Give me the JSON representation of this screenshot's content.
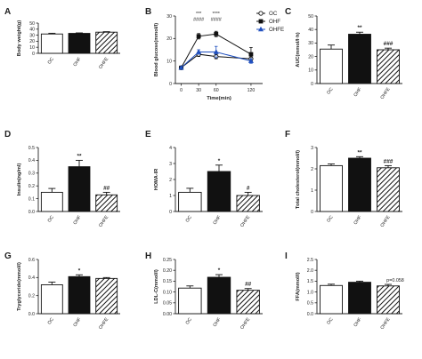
{
  "colors": {
    "OC": "#ffffff",
    "OHF": "#111111",
    "OHFE": "hatch",
    "axis": "#222222",
    "line_OHFE": "#1f4fbf"
  },
  "chart_data": [
    {
      "panel": "A",
      "type": "bar",
      "ylabel": "Body weight(g)",
      "categories": [
        "OC",
        "OHF",
        "OHFE"
      ],
      "values": [
        32,
        33,
        35
      ],
      "errors": [
        1.2,
        0.8,
        0.8
      ],
      "ylim": [
        0,
        50
      ],
      "yticks": [
        0,
        10,
        20,
        30,
        40,
        50
      ],
      "annotations": [
        "",
        "",
        ""
      ]
    },
    {
      "panel": "B",
      "type": "line",
      "ylabel": "Blood glucose(mmol/l)",
      "xlabel": "Time(min)",
      "x": [
        0,
        30,
        60,
        120
      ],
      "ylim": [
        0,
        30
      ],
      "yticks": [
        0,
        10,
        20,
        30
      ],
      "xticks": [
        0,
        30,
        60,
        120
      ],
      "series": [
        {
          "name": "OC",
          "values": [
            7,
            13,
            12,
            11
          ],
          "errors": [
            0.5,
            1.0,
            1.0,
            0.8
          ],
          "marker": "open-circle"
        },
        {
          "name": "OHF",
          "values": [
            7,
            21,
            22,
            13
          ],
          "errors": [
            0.5,
            1.2,
            1.2,
            3.0
          ],
          "marker": "filled-square"
        },
        {
          "name": "OHFE",
          "values": [
            7,
            14,
            14,
            10
          ],
          "errors": [
            0.5,
            1.0,
            2.5,
            1.0
          ],
          "marker": "filled-triangle"
        }
      ],
      "annotations": [
        {
          "x": 30,
          "top": "***",
          "bottom": "####"
        },
        {
          "x": 60,
          "top": "****",
          "bottom": "####"
        }
      ],
      "legend_position": "top-right"
    },
    {
      "panel": "C",
      "type": "bar",
      "ylabel": "AUC(mmol/l·h)",
      "categories": [
        "OC",
        "OHF",
        "OHFE"
      ],
      "values": [
        25.5,
        36.5,
        25
      ],
      "errors": [
        3,
        1.5,
        1.2
      ],
      "ylim": [
        0,
        50
      ],
      "yticks": [
        0,
        10,
        20,
        30,
        40,
        50
      ],
      "annotations": [
        "",
        "**",
        "###"
      ]
    },
    {
      "panel": "D",
      "type": "bar",
      "ylabel": "Insulin(ng/ml)",
      "categories": [
        "OC",
        "OHF",
        "OHFE"
      ],
      "values": [
        0.15,
        0.35,
        0.13
      ],
      "errors": [
        0.03,
        0.05,
        0.02
      ],
      "ylim": [
        0,
        0.5
      ],
      "yticks": [
        0.0,
        0.1,
        0.2,
        0.3,
        0.4,
        0.5
      ],
      "annotations": [
        "",
        "**",
        "##"
      ]
    },
    {
      "panel": "E",
      "type": "bar",
      "ylabel": "HOMA-IR",
      "categories": [
        "OC",
        "OHF",
        "OHFE"
      ],
      "values": [
        1.2,
        2.5,
        1.0
      ],
      "errors": [
        0.25,
        0.4,
        0.2
      ],
      "ylim": [
        0,
        4
      ],
      "yticks": [
        0,
        1,
        2,
        3,
        4
      ],
      "annotations": [
        "",
        "*",
        "#"
      ]
    },
    {
      "panel": "F",
      "type": "bar",
      "ylabel": "Total cholesterol(mmol/l)",
      "categories": [
        "OC",
        "OHF",
        "OHFE"
      ],
      "values": [
        2.15,
        2.5,
        2.05
      ],
      "errors": [
        0.08,
        0.07,
        0.1
      ],
      "ylim": [
        0,
        3
      ],
      "yticks": [
        0,
        1,
        2,
        3
      ],
      "annotations": [
        "",
        "**",
        "###"
      ]
    },
    {
      "panel": "G",
      "type": "bar",
      "ylabel": "Tryglyceride(mmol/l)",
      "categories": [
        "OC",
        "OHF",
        "OHFE"
      ],
      "values": [
        0.32,
        0.41,
        0.39
      ],
      "errors": [
        0.03,
        0.02,
        0.01
      ],
      "ylim": [
        0,
        0.6
      ],
      "yticks": [
        0.0,
        0.2,
        0.4,
        0.6
      ],
      "annotations": [
        "",
        "*",
        ""
      ]
    },
    {
      "panel": "H",
      "type": "bar",
      "ylabel": "LDL-C(mmol/l)",
      "categories": [
        "OC",
        "OHF",
        "OHFE"
      ],
      "values": [
        0.118,
        0.168,
        0.108
      ],
      "errors": [
        0.01,
        0.012,
        0.008
      ],
      "ylim": [
        0,
        0.25
      ],
      "yticks": [
        0.0,
        0.05,
        0.1,
        0.15,
        0.2,
        0.25
      ],
      "annotations": [
        "",
        "*",
        "##"
      ]
    },
    {
      "panel": "I",
      "type": "bar",
      "ylabel": "FFA(mmol/l)",
      "categories": [
        "OC",
        "OHF",
        "OHFE"
      ],
      "values": [
        1.3,
        1.45,
        1.28
      ],
      "errors": [
        0.06,
        0.05,
        0.07
      ],
      "ylim": [
        0,
        2.5
      ],
      "yticks": [
        0.0,
        0.5,
        1.0,
        1.5,
        2.0,
        2.5
      ],
      "annotations": [
        "",
        "",
        "p=0.058"
      ]
    }
  ]
}
